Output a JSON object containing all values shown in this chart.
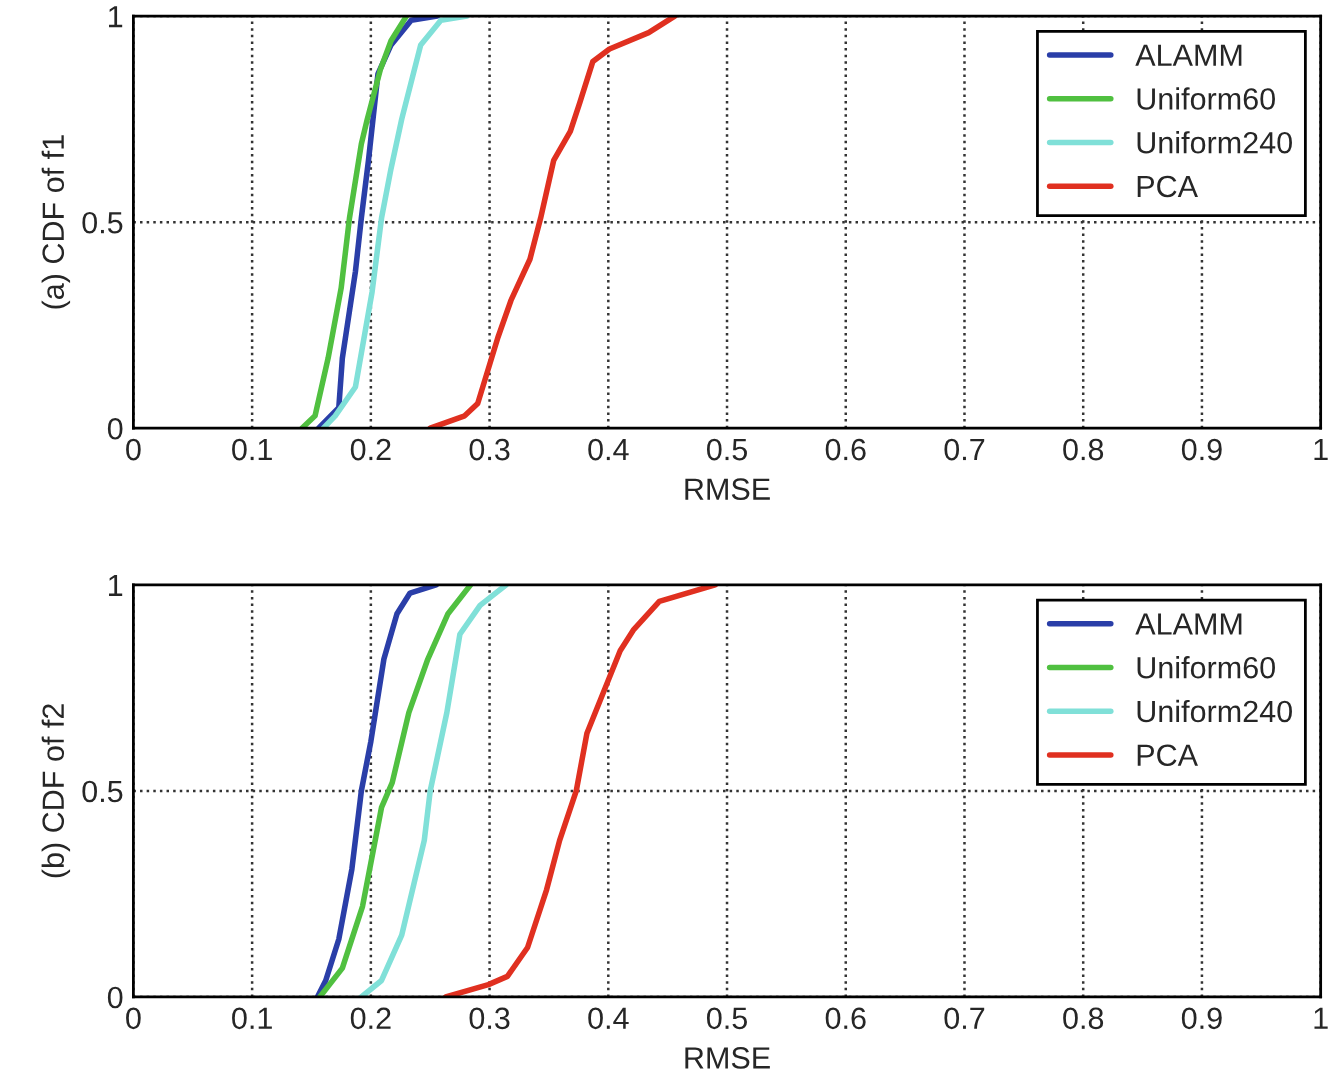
{
  "chart_data": [
    {
      "type": "line",
      "xlabel": "RMSE",
      "ylabel": "(a) CDF of f1",
      "xlim": [
        0,
        1
      ],
      "ylim": [
        0,
        1
      ],
      "xticks": [
        0,
        0.1,
        0.2,
        0.3,
        0.4,
        0.5,
        0.6,
        0.7,
        0.8,
        0.9,
        1
      ],
      "yticks": [
        0,
        0.5,
        1
      ],
      "grid": true,
      "legend": "top right",
      "series": [
        {
          "name": "ALAMM",
          "color": "#2a3ea8",
          "x": [
            0.156,
            0.173,
            0.176,
            0.187,
            0.192,
            0.198,
            0.206,
            0.217,
            0.234,
            0.256
          ],
          "values": [
            0,
            0.05,
            0.17,
            0.38,
            0.51,
            0.65,
            0.86,
            0.93,
            0.99,
            1
          ]
        },
        {
          "name": "Uniform60",
          "color": "#50c040",
          "x": [
            0.142,
            0.153,
            0.164,
            0.175,
            0.182,
            0.192,
            0.197,
            0.208,
            0.217,
            0.23
          ],
          "values": [
            0,
            0.03,
            0.17,
            0.34,
            0.51,
            0.69,
            0.75,
            0.87,
            0.94,
            1
          ]
        },
        {
          "name": "Uniform240",
          "color": "#80e0d8",
          "x": [
            0.16,
            0.17,
            0.187,
            0.201,
            0.209,
            0.217,
            0.226,
            0.242,
            0.259,
            0.281
          ],
          "values": [
            0,
            0.03,
            0.1,
            0.33,
            0.51,
            0.63,
            0.75,
            0.93,
            0.99,
            1
          ]
        },
        {
          "name": "PCA",
          "color": "#e03020",
          "x": [
            0.25,
            0.279,
            0.29,
            0.307,
            0.318,
            0.334,
            0.343,
            0.354,
            0.368,
            0.376,
            0.387,
            0.401,
            0.434,
            0.456
          ],
          "values": [
            0,
            0.03,
            0.06,
            0.22,
            0.31,
            0.41,
            0.51,
            0.65,
            0.72,
            0.79,
            0.89,
            0.92,
            0.96,
            1
          ]
        }
      ]
    },
    {
      "type": "line",
      "xlabel": "RMSE",
      "ylabel": "(b) CDF of f2",
      "xlim": [
        0,
        1
      ],
      "ylim": [
        0,
        1
      ],
      "xticks": [
        0,
        0.1,
        0.2,
        0.3,
        0.4,
        0.5,
        0.6,
        0.7,
        0.8,
        0.9,
        1
      ],
      "yticks": [
        0,
        0.5,
        1
      ],
      "grid": true,
      "legend": "top right",
      "series": [
        {
          "name": "ALAMM",
          "color": "#2a3ea8",
          "x": [
            0.155,
            0.162,
            0.173,
            0.184,
            0.192,
            0.2,
            0.211,
            0.222,
            0.233,
            0.255
          ],
          "values": [
            0,
            0.04,
            0.14,
            0.31,
            0.5,
            0.62,
            0.82,
            0.93,
            0.98,
            1
          ]
        },
        {
          "name": "Uniform60",
          "color": "#50c040",
          "x": [
            0.157,
            0.176,
            0.193,
            0.209,
            0.218,
            0.232,
            0.248,
            0.265,
            0.284
          ],
          "values": [
            0,
            0.07,
            0.22,
            0.46,
            0.52,
            0.69,
            0.82,
            0.93,
            1
          ]
        },
        {
          "name": "Uniform240",
          "color": "#80e0d8",
          "x": [
            0.192,
            0.209,
            0.226,
            0.245,
            0.25,
            0.264,
            0.275,
            0.292,
            0.314
          ],
          "values": [
            0,
            0.04,
            0.15,
            0.38,
            0.5,
            0.69,
            0.88,
            0.95,
            1
          ]
        },
        {
          "name": "PCA",
          "color": "#e03020",
          "x": [
            0.263,
            0.299,
            0.315,
            0.332,
            0.348,
            0.359,
            0.373,
            0.382,
            0.396,
            0.41,
            0.421,
            0.443,
            0.49
          ],
          "values": [
            0,
            0.03,
            0.05,
            0.12,
            0.26,
            0.38,
            0.5,
            0.64,
            0.74,
            0.84,
            0.89,
            0.96,
            1
          ]
        }
      ]
    }
  ]
}
